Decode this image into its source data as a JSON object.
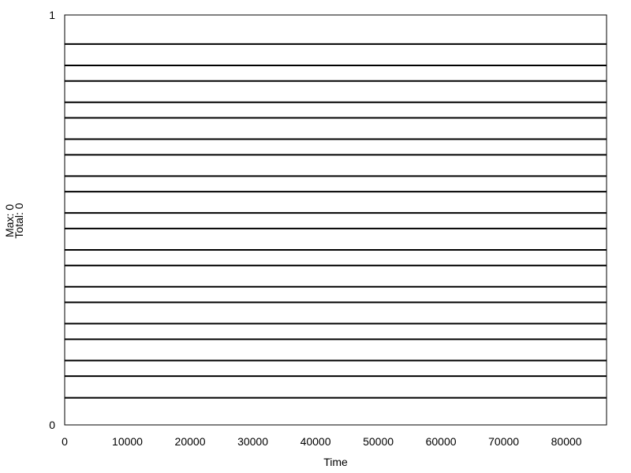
{
  "chart_data": {
    "type": "line",
    "title": "",
    "xlabel": "Time",
    "ylabel_lines": [
      "Max: 0",
      "Total: 0"
    ],
    "xlim": [
      0,
      86400
    ],
    "ylim": [
      0,
      1
    ],
    "x_ticks": [
      {
        "value": 0,
        "label": "0"
      },
      {
        "value": 10000,
        "label": "10000"
      },
      {
        "value": 20000,
        "label": "20000"
      },
      {
        "value": 30000,
        "label": "30000"
      },
      {
        "value": 40000,
        "label": "40000"
      },
      {
        "value": 50000,
        "label": "50000"
      },
      {
        "value": 60000,
        "label": "60000"
      },
      {
        "value": 70000,
        "label": "70000"
      },
      {
        "value": 80000,
        "label": "80000"
      }
    ],
    "y_ticks": [
      {
        "value": 0,
        "label": "0"
      },
      {
        "value": 1,
        "label": "1"
      }
    ],
    "grid": false,
    "legend": "none",
    "series": [
      {
        "y": 0.066
      },
      {
        "y": 0.119
      },
      {
        "y": 0.157
      },
      {
        "y": 0.209
      },
      {
        "y": 0.247
      },
      {
        "y": 0.299
      },
      {
        "y": 0.337
      },
      {
        "y": 0.389
      },
      {
        "y": 0.427
      },
      {
        "y": 0.479
      },
      {
        "y": 0.517
      },
      {
        "y": 0.569
      },
      {
        "y": 0.607
      },
      {
        "y": 0.659
      },
      {
        "y": 0.697
      },
      {
        "y": 0.749
      },
      {
        "y": 0.787
      },
      {
        "y": 0.839
      },
      {
        "y": 0.877
      },
      {
        "y": 0.929
      }
    ],
    "line_color": "#000000",
    "axis_color": "#000000"
  }
}
